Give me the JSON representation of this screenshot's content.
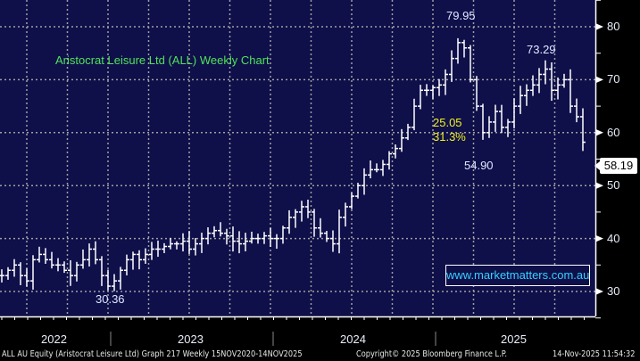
{
  "chart_data": {
    "type": "ohlc-bar",
    "title": "Aristocrat Leisure Ltd (ALL) Weekly Chart",
    "ylim": [
      25,
      85
    ],
    "yticks": [
      30,
      40,
      50,
      60,
      70,
      80
    ],
    "xticks": [
      "2022",
      "2023",
      "2024",
      "2025"
    ],
    "grid": true,
    "weekly_close_approx": [
      33,
      34,
      35,
      33,
      32,
      36,
      37,
      36,
      35,
      35,
      34,
      33,
      35,
      36,
      38,
      36,
      33,
      31,
      32,
      34,
      36,
      37,
      36,
      37,
      38,
      38,
      38.5,
      39,
      39,
      39.5,
      38,
      39,
      40,
      41,
      41.5,
      41,
      40.5,
      39.5,
      39,
      39.5,
      40,
      40,
      40.5,
      40,
      40,
      42,
      44,
      45,
      46,
      45,
      42,
      41,
      40,
      39,
      44,
      46,
      48,
      50,
      52,
      53,
      53,
      54,
      56,
      57,
      59,
      61,
      65,
      68,
      68,
      68.5,
      69,
      71,
      74,
      77,
      76,
      70,
      65,
      60,
      62,
      64,
      61,
      62,
      65,
      67,
      68,
      69,
      71,
      72,
      68,
      69,
      70,
      65,
      63,
      58.19
    ],
    "annotations": {
      "high": "79.95",
      "low_2022": "30.36",
      "low_2025": "54.90",
      "high_2025": "73.29",
      "move": "25.05",
      "move_pct": "31.3%"
    },
    "last_price": "58.19"
  },
  "watermark": "www.marketmatters.com.au",
  "footer": {
    "left": "ALL AU Equity (Aristocrat Leisure Ltd) Graph 217 Weekly 15NOV2020-14NOV2025",
    "center": "Copyright© 2025 Bloomberg Finance L.P.",
    "right": "14-Nov-2025 11:54:32"
  },
  "colors": {
    "background": "#0f0f4a",
    "bars": "#ffffff",
    "title": "#4fe35a",
    "annotation_yellow": "#f2f21a",
    "watermark": "#36d0ff"
  }
}
